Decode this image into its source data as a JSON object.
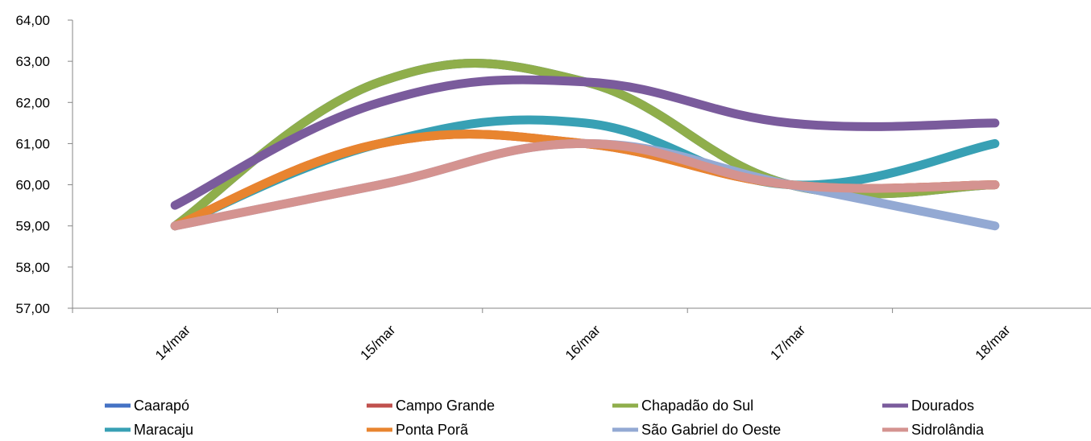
{
  "chart_data": {
    "type": "line",
    "title": "",
    "xlabel": "",
    "ylabel": "",
    "categories": [
      "14/mar",
      "15/mar",
      "16/mar",
      "17/mar",
      "18/mar"
    ],
    "y_ticks": [
      "57,00",
      "58,00",
      "59,00",
      "60,00",
      "61,00",
      "62,00",
      "63,00",
      "64,00"
    ],
    "ylim": [
      57,
      64
    ],
    "grid": false,
    "legend_position": "bottom",
    "smooth": true,
    "series": [
      {
        "name": "Caarapó",
        "color": "#4472c4",
        "values": [
          59.0,
          62.5,
          62.5,
          60.0,
          60.0
        ]
      },
      {
        "name": "Campo Grande",
        "color": "#c0504d",
        "values": [
          59.0,
          61.0,
          61.0,
          60.0,
          60.0
        ]
      },
      {
        "name": "Chapadão do Sul",
        "color": "#8fae4b",
        "values": [
          59.0,
          62.5,
          62.5,
          60.0,
          60.0
        ]
      },
      {
        "name": "Dourados",
        "color": "#7a5b9c",
        "values": [
          59.5,
          62.0,
          62.5,
          61.5,
          61.5
        ]
      },
      {
        "name": "Maracaju",
        "color": "#38a0b4",
        "values": [
          59.0,
          61.0,
          61.5,
          60.0,
          61.0
        ]
      },
      {
        "name": "Ponta Porã",
        "color": "#e8842f",
        "values": [
          59.0,
          61.0,
          61.0,
          60.0,
          60.0
        ]
      },
      {
        "name": "São Gabriel do Oeste",
        "color": "#93a9d3",
        "values": [
          59.0,
          60.0,
          61.0,
          60.0,
          59.0
        ]
      },
      {
        "name": "Sidrolândia",
        "color": "#d49390",
        "values": [
          59.0,
          60.0,
          61.0,
          60.0,
          60.0
        ]
      }
    ]
  }
}
